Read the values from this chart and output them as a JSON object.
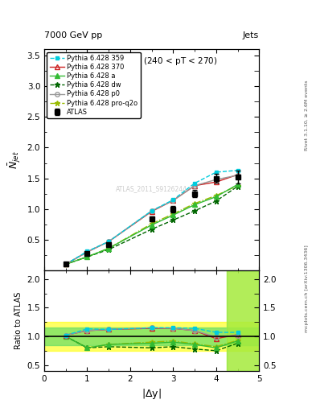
{
  "title_top": "7000 GeV pp",
  "title_right": "Jets",
  "watermark": "ATLAS_2011_S9126244",
  "xlabel": "|$\\Delta$y|",
  "ylabel_main": "$\\bar{N}_{jet}$",
  "ylabel_ratio": "Ratio to ATLAS",
  "x_data": [
    0.5,
    1.0,
    1.5,
    2.5,
    3.0,
    3.5,
    4.0,
    4.5
  ],
  "atlas_y": [
    0.1,
    0.28,
    0.42,
    0.84,
    1.0,
    1.25,
    1.5,
    1.52
  ],
  "atlas_yerr": [
    0.01,
    0.02,
    0.02,
    0.04,
    0.05,
    0.06,
    0.07,
    0.1
  ],
  "p359_y": [
    0.1,
    0.31,
    0.47,
    0.97,
    1.15,
    1.42,
    1.6,
    1.63
  ],
  "p370_y": [
    0.1,
    0.3,
    0.47,
    0.96,
    1.14,
    1.38,
    1.44,
    1.56
  ],
  "pa_y": [
    0.1,
    0.22,
    0.36,
    0.74,
    0.9,
    1.07,
    1.2,
    1.4
  ],
  "pdw_y": [
    0.1,
    0.22,
    0.34,
    0.67,
    0.82,
    0.97,
    1.13,
    1.37
  ],
  "pp0_y": [
    0.1,
    0.3,
    0.47,
    0.97,
    1.14,
    1.38,
    1.48,
    1.55
  ],
  "pproq2o_y": [
    0.1,
    0.22,
    0.36,
    0.76,
    0.92,
    1.09,
    1.22,
    1.38
  ],
  "ratio_p359": [
    1.02,
    1.13,
    1.12,
    1.15,
    1.15,
    1.14,
    1.07,
    1.07
  ],
  "ratio_p370": [
    1.02,
    1.1,
    1.12,
    1.14,
    1.14,
    1.1,
    0.96,
    1.03
  ],
  "ratio_pa": [
    1.0,
    0.8,
    0.86,
    0.88,
    0.9,
    0.86,
    0.8,
    0.92
  ],
  "ratio_pdw": [
    1.0,
    0.8,
    0.82,
    0.8,
    0.82,
    0.78,
    0.75,
    0.88
  ],
  "ratio_pp0": [
    1.02,
    1.1,
    1.12,
    1.15,
    1.14,
    1.1,
    0.99,
    1.02
  ],
  "ratio_pproq2o": [
    1.0,
    0.8,
    0.86,
    0.9,
    0.92,
    0.87,
    0.82,
    0.93
  ],
  "color_atlas": "#000000",
  "color_359": "#00ccdd",
  "color_370": "#cc2222",
  "color_a": "#33bb33",
  "color_dw": "#006600",
  "color_p0": "#999999",
  "color_proq2o": "#99bb00",
  "ylim_main": [
    0.0,
    3.6
  ],
  "ylim_ratio": [
    0.4,
    2.15
  ],
  "yticks_main": [
    0.5,
    1.0,
    1.5,
    2.0,
    2.5,
    3.0,
    3.5
  ],
  "yticks_ratio": [
    0.5,
    1.0,
    1.5,
    2.0
  ],
  "xlim": [
    0.0,
    5.0
  ],
  "yellow_band_xstart": 4.25,
  "green_band_half": 0.15,
  "yellow_band_half": 0.25
}
